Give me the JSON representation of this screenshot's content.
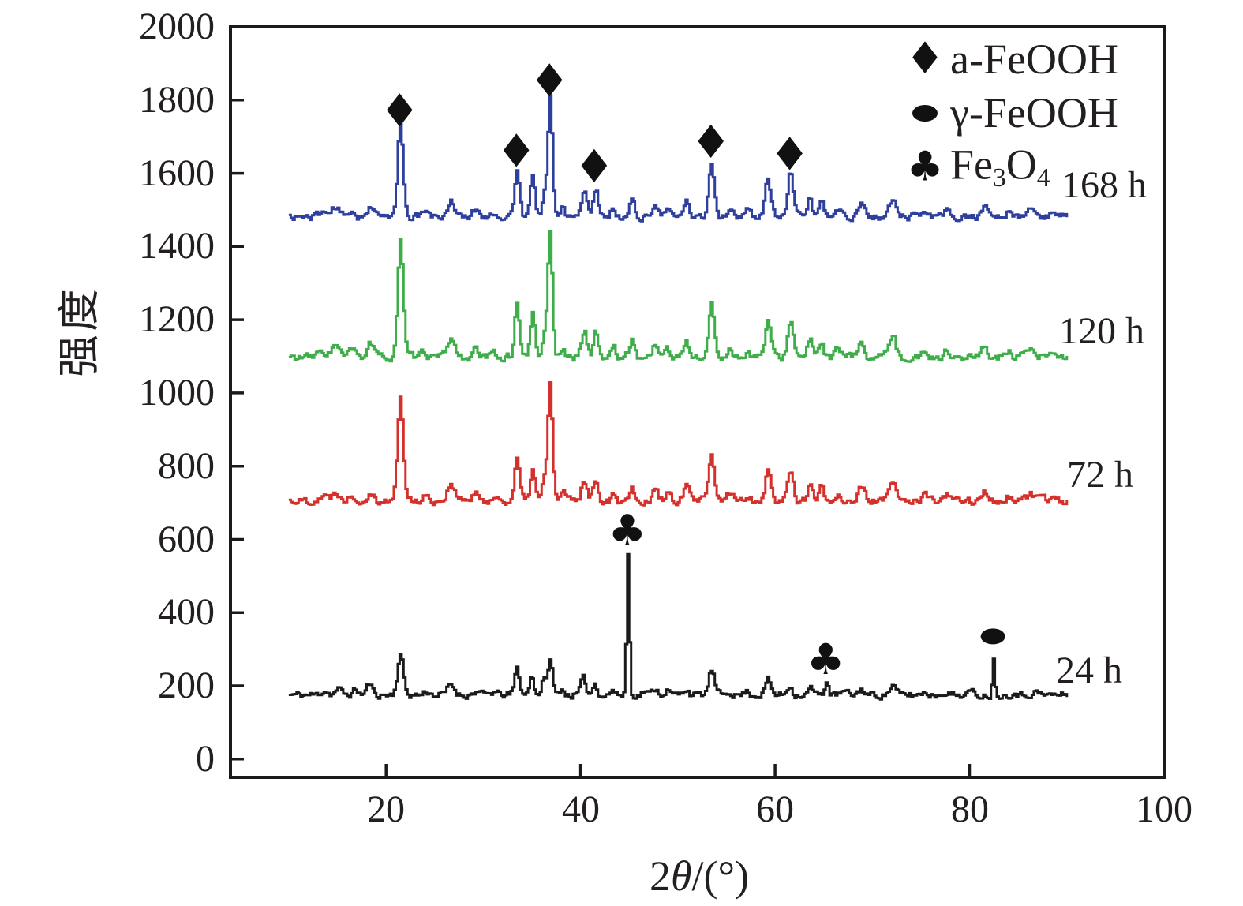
{
  "chart_data": {
    "type": "line",
    "title": "",
    "xlabel": "2θ/(°)",
    "xlabel_parts": {
      "pre": "2",
      "theta": "θ",
      "post": "/(°)"
    },
    "ylabel": "强度",
    "xlim": [
      4,
      100
    ],
    "ylim": [
      -50,
      2000
    ],
    "x_data_range": [
      10,
      90
    ],
    "grid": false,
    "axis_color": "#1a1a1a",
    "marker_color": "#111111",
    "xticks": {
      "values": [
        20,
        40,
        60,
        80,
        100
      ],
      "labels": [
        "20",
        "40",
        "60",
        "80",
        "100"
      ]
    },
    "yticks": {
      "values": [
        0,
        200,
        400,
        600,
        800,
        1000,
        1200,
        1400,
        1600,
        1800,
        2000
      ],
      "labels": [
        "0",
        "200",
        "400",
        "600",
        "800",
        "1000",
        "1200",
        "1400",
        "1600",
        "1800",
        "2000"
      ]
    },
    "series": [
      {
        "name": "24 h",
        "color": "#1b1b1b",
        "baseline": 175,
        "noise": 8,
        "seed": 11,
        "peaks": [
          [
            13.6,
            12,
            0.5
          ],
          [
            15.0,
            16,
            0.45
          ],
          [
            16.8,
            14,
            0.4
          ],
          [
            18.2,
            30,
            0.4
          ],
          [
            21.4,
            112,
            0.42
          ],
          [
            24.1,
            10,
            0.4
          ],
          [
            26.6,
            28,
            0.5
          ],
          [
            29.2,
            10,
            0.4
          ],
          [
            31.0,
            8,
            0.4
          ],
          [
            33.4,
            72,
            0.35
          ],
          [
            34.9,
            52,
            0.33
          ],
          [
            36.1,
            42,
            0.3
          ],
          [
            36.8,
            100,
            0.33
          ],
          [
            38.0,
            18,
            0.3
          ],
          [
            40.2,
            42,
            0.38
          ],
          [
            41.4,
            32,
            0.33
          ],
          [
            43.2,
            14,
            0.3
          ],
          [
            44.8,
            385,
            0.2
          ],
          [
            46.5,
            10,
            0.35
          ],
          [
            47.6,
            18,
            0.38
          ],
          [
            48.8,
            14,
            0.35
          ],
          [
            50.8,
            18,
            0.38
          ],
          [
            53.4,
            68,
            0.4
          ],
          [
            55.2,
            10,
            0.4
          ],
          [
            57.0,
            10,
            0.4
          ],
          [
            59.2,
            42,
            0.4
          ],
          [
            61.4,
            26,
            0.38
          ],
          [
            63.6,
            20,
            0.33
          ],
          [
            65.2,
            38,
            0.28
          ],
          [
            67.0,
            8,
            0.4
          ],
          [
            68.8,
            16,
            0.4
          ],
          [
            72.0,
            26,
            0.45
          ],
          [
            75.3,
            8,
            0.4
          ],
          [
            77.4,
            10,
            0.4
          ],
          [
            80.0,
            8,
            0.4
          ],
          [
            82.4,
            95,
            0.18
          ],
          [
            84.5,
            8,
            0.4
          ],
          [
            86.6,
            10,
            0.4
          ]
        ]
      },
      {
        "name": "72 h",
        "color": "#d4302c",
        "baseline": 706,
        "noise": 9,
        "seed": 22,
        "peaks": [
          [
            13.4,
            14,
            0.6
          ],
          [
            14.8,
            26,
            0.5
          ],
          [
            16.4,
            18,
            0.45
          ],
          [
            18.3,
            26,
            0.45
          ],
          [
            21.4,
            290,
            0.4
          ],
          [
            23.9,
            14,
            0.4
          ],
          [
            26.6,
            48,
            0.5
          ],
          [
            29.1,
            16,
            0.4
          ],
          [
            31.0,
            10,
            0.4
          ],
          [
            33.4,
            112,
            0.35
          ],
          [
            35.0,
            88,
            0.33
          ],
          [
            36.2,
            58,
            0.3
          ],
          [
            36.8,
            325,
            0.33
          ],
          [
            38.1,
            24,
            0.3
          ],
          [
            40.3,
            58,
            0.38
          ],
          [
            41.5,
            62,
            0.35
          ],
          [
            43.3,
            24,
            0.32
          ],
          [
            45.2,
            38,
            0.38
          ],
          [
            47.6,
            32,
            0.38
          ],
          [
            48.8,
            20,
            0.35
          ],
          [
            50.8,
            38,
            0.38
          ],
          [
            53.4,
            118,
            0.4
          ],
          [
            55.3,
            20,
            0.4
          ],
          [
            57.1,
            14,
            0.4
          ],
          [
            59.2,
            82,
            0.4
          ],
          [
            61.5,
            86,
            0.4
          ],
          [
            63.5,
            42,
            0.33
          ],
          [
            64.7,
            38,
            0.33
          ],
          [
            66.4,
            18,
            0.38
          ],
          [
            68.8,
            34,
            0.42
          ],
          [
            72.0,
            48,
            0.45
          ],
          [
            75.4,
            14,
            0.4
          ],
          [
            77.5,
            14,
            0.4
          ],
          [
            81.5,
            20,
            0.45
          ],
          [
            83.9,
            10,
            0.4
          ],
          [
            86.2,
            16,
            0.45
          ],
          [
            88.6,
            12,
            0.4
          ]
        ]
      },
      {
        "name": "120 h",
        "color": "#3fae4a",
        "baseline": 1097,
        "noise": 9,
        "seed": 33,
        "peaks": [
          [
            13.4,
            16,
            0.6
          ],
          [
            14.7,
            32,
            0.55
          ],
          [
            16.4,
            20,
            0.45
          ],
          [
            18.3,
            40,
            0.45
          ],
          [
            21.4,
            320,
            0.4
          ],
          [
            23.9,
            16,
            0.4
          ],
          [
            26.6,
            55,
            0.5
          ],
          [
            29.1,
            18,
            0.4
          ],
          [
            31.0,
            12,
            0.4
          ],
          [
            33.4,
            150,
            0.35
          ],
          [
            35.0,
            120,
            0.33
          ],
          [
            36.2,
            68,
            0.3
          ],
          [
            36.8,
            345,
            0.33
          ],
          [
            38.1,
            28,
            0.3
          ],
          [
            40.3,
            75,
            0.38
          ],
          [
            41.5,
            72,
            0.35
          ],
          [
            43.3,
            28,
            0.32
          ],
          [
            45.2,
            48,
            0.38
          ],
          [
            47.6,
            40,
            0.38
          ],
          [
            48.8,
            24,
            0.35
          ],
          [
            50.8,
            44,
            0.38
          ],
          [
            53.4,
            140,
            0.4
          ],
          [
            55.3,
            24,
            0.4
          ],
          [
            57.1,
            16,
            0.4
          ],
          [
            59.2,
            100,
            0.4
          ],
          [
            61.5,
            105,
            0.4
          ],
          [
            63.5,
            50,
            0.33
          ],
          [
            64.7,
            42,
            0.33
          ],
          [
            66.4,
            22,
            0.38
          ],
          [
            68.8,
            48,
            0.42
          ],
          [
            72.0,
            65,
            0.45
          ],
          [
            75.4,
            16,
            0.4
          ],
          [
            77.5,
            16,
            0.4
          ],
          [
            81.5,
            35,
            0.42
          ],
          [
            83.9,
            12,
            0.4
          ],
          [
            86.2,
            18,
            0.45
          ],
          [
            88.6,
            14,
            0.4
          ]
        ]
      },
      {
        "name": "168 h",
        "color": "#2e3f9c",
        "baseline": 1481,
        "noise": 8,
        "seed": 44,
        "peaks": [
          [
            13.4,
            14,
            0.6
          ],
          [
            14.7,
            26,
            0.55
          ],
          [
            16.4,
            18,
            0.45
          ],
          [
            18.3,
            30,
            0.45
          ],
          [
            21.4,
            262,
            0.4
          ],
          [
            23.9,
            16,
            0.4
          ],
          [
            26.6,
            45,
            0.5
          ],
          [
            29.1,
            20,
            0.4
          ],
          [
            31.0,
            12,
            0.4
          ],
          [
            33.4,
            125,
            0.35
          ],
          [
            35.0,
            110,
            0.33
          ],
          [
            36.2,
            64,
            0.3
          ],
          [
            36.8,
            330,
            0.33
          ],
          [
            38.1,
            26,
            0.3
          ],
          [
            40.3,
            65,
            0.38
          ],
          [
            41.5,
            80,
            0.35
          ],
          [
            43.3,
            26,
            0.32
          ],
          [
            45.2,
            44,
            0.38
          ],
          [
            47.6,
            38,
            0.38
          ],
          [
            48.8,
            22,
            0.35
          ],
          [
            50.8,
            40,
            0.38
          ],
          [
            53.4,
            150,
            0.4
          ],
          [
            55.3,
            24,
            0.4
          ],
          [
            57.1,
            16,
            0.4
          ],
          [
            59.2,
            105,
            0.4
          ],
          [
            61.5,
            120,
            0.4
          ],
          [
            63.5,
            52,
            0.33
          ],
          [
            64.7,
            44,
            0.33
          ],
          [
            66.4,
            22,
            0.38
          ],
          [
            68.8,
            40,
            0.42
          ],
          [
            72.0,
            48,
            0.45
          ],
          [
            75.4,
            16,
            0.4
          ],
          [
            77.5,
            16,
            0.4
          ],
          [
            81.5,
            28,
            0.45
          ],
          [
            83.9,
            12,
            0.4
          ],
          [
            86.2,
            22,
            0.45
          ],
          [
            88.6,
            14,
            0.4
          ]
        ]
      }
    ],
    "markers": [
      {
        "symbol": "diamond",
        "phase": "a-FeOOH",
        "x": 21.4,
        "y": 1770
      },
      {
        "symbol": "diamond",
        "phase": "a-FeOOH",
        "x": 33.4,
        "y": 1660
      },
      {
        "symbol": "diamond",
        "phase": "a-FeOOH",
        "x": 36.8,
        "y": 1852
      },
      {
        "symbol": "diamond",
        "phase": "a-FeOOH",
        "x": 41.4,
        "y": 1618
      },
      {
        "symbol": "diamond",
        "phase": "a-FeOOH",
        "x": 53.4,
        "y": 1685
      },
      {
        "symbol": "diamond",
        "phase": "a-FeOOH",
        "x": 61.5,
        "y": 1652
      },
      {
        "symbol": "club",
        "phase": "Fe3O4",
        "x": 44.8,
        "y": 625
      },
      {
        "symbol": "club",
        "phase": "Fe3O4",
        "x": 65.2,
        "y": 272
      },
      {
        "symbol": "ellipse",
        "phase": "γ-FeOOH",
        "x": 82.4,
        "y": 335
      }
    ],
    "legend": [
      {
        "symbol": "diamond",
        "label": "a-FeOOH"
      },
      {
        "symbol": "ellipse",
        "label": "γ-FeOOH"
      },
      {
        "symbol": "club",
        "label": "Fe3O4",
        "label_parts": {
          "p0": "Fe",
          "s0": "3",
          "p1": "O",
          "s1": "4"
        }
      }
    ],
    "curve_labels": [
      {
        "text": "24 h"
      },
      {
        "text": "72 h"
      },
      {
        "text": "120 h"
      },
      {
        "text": "168 h"
      }
    ]
  }
}
